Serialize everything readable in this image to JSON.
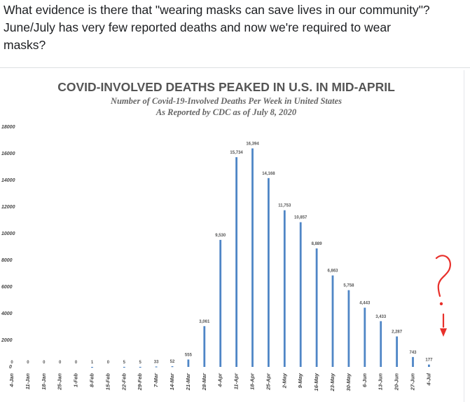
{
  "post": {
    "line1": "What evidence is there that \"wearing masks can save lives in our community\"?",
    "line2": "June/July has very few reported deaths and now we're required to wear",
    "line3": "masks?"
  },
  "annotation": {
    "symbols": "?!",
    "color": "#e8302b"
  },
  "chart_data": {
    "type": "bar",
    "title": "COVID-INVOLVED DEATHS PEAKED IN U.S. IN MID-APRIL",
    "subtitle1": "Number of Covid-19-Involved Deaths Per Week in United States",
    "subtitle2": "As Reported by CDC as of July 8, 2020",
    "bar_color": "#4f86c6",
    "ylim": [
      0,
      18000
    ],
    "yticks": [
      "0",
      "2000",
      "4000",
      "6000",
      "8000",
      "10000",
      "12000",
      "14000",
      "16000",
      "18000"
    ],
    "categories": [
      "4-Jan",
      "11-Jan",
      "18-Jan",
      "25-Jan",
      "1-Feb",
      "8-Feb",
      "15-Feb",
      "22-Feb",
      "29-Feb",
      "7-Mar",
      "14-Mar",
      "21-Mar",
      "28-Mar",
      "4-Apr",
      "11-Apr",
      "18-Apr",
      "25-Apr",
      "2-May",
      "9-May",
      "16-May",
      "23-May",
      "30-May",
      "6-Jun",
      "13-Jun",
      "20-Jun",
      "27-Jun",
      "4-Jul"
    ],
    "values": [
      0,
      0,
      0,
      0,
      0,
      1,
      0,
      5,
      5,
      33,
      52,
      555,
      3061,
      9530,
      15734,
      16394,
      14168,
      11753,
      10857,
      8889,
      6863,
      5758,
      4443,
      3433,
      2287,
      743,
      177
    ],
    "value_labels": [
      "0",
      "0",
      "0",
      "0",
      "0",
      "1",
      "0",
      "5",
      "5",
      "33",
      "52",
      "555",
      "3,061",
      "9,530",
      "15,734",
      "16,394",
      "14,168",
      "11,753",
      "10,857",
      "8,889",
      "6,863",
      "5,758",
      "4,443",
      "3,433",
      "2,287",
      "743",
      "177"
    ]
  }
}
